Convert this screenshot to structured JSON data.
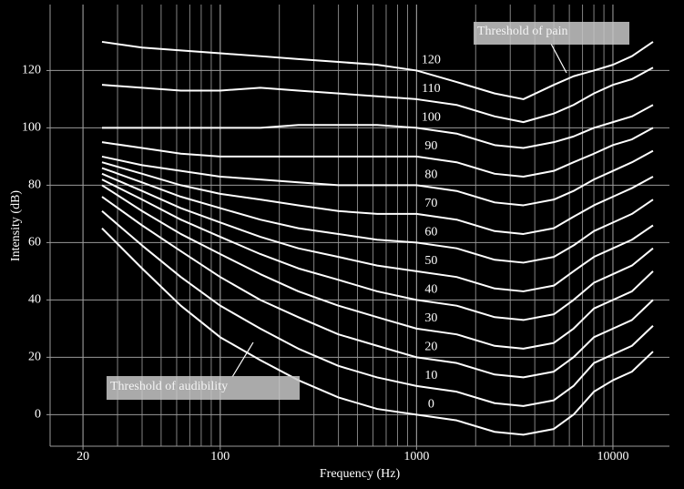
{
  "chart_data": {
    "type": "line",
    "xlabel": "Frequency (Hz)",
    "ylabel": "Intensity (dB)",
    "xscale": "log",
    "grid": true,
    "color": "#ffffff",
    "xlim": [
      13.6,
      19400
    ],
    "ylim": [
      -11,
      143
    ],
    "xticks": [
      20,
      100,
      1000,
      10000
    ],
    "yticks": [
      0,
      20,
      40,
      60,
      80,
      100,
      120
    ],
    "x": [
      25,
      40,
      63,
      100,
      160,
      250,
      400,
      630,
      1000,
      1600,
      2500,
      3500,
      5000,
      6300,
      8000,
      10000,
      12500,
      16000
    ],
    "series": [
      {
        "name": "0",
        "values": [
          65,
          51,
          38,
          27,
          19,
          12,
          6,
          2,
          0,
          -2,
          -6,
          -7,
          -5,
          0,
          8,
          12,
          15,
          22
        ]
      },
      {
        "name": "10",
        "values": [
          71,
          59,
          48,
          38,
          30,
          23,
          17,
          13,
          10,
          8,
          4,
          3,
          5,
          10,
          18,
          21,
          24,
          31
        ]
      },
      {
        "name": "20",
        "values": [
          76,
          66,
          57,
          48,
          40,
          34,
          28,
          24,
          20,
          18,
          14,
          13,
          15,
          20,
          27,
          30,
          33,
          40
        ]
      },
      {
        "name": "30",
        "values": [
          80,
          71,
          63,
          56,
          49,
          43,
          38,
          34,
          30,
          28,
          24,
          23,
          25,
          30,
          37,
          40,
          43,
          50
        ]
      },
      {
        "name": "40",
        "values": [
          82,
          75,
          68,
          62,
          56,
          51,
          47,
          43,
          40,
          38,
          34,
          33,
          35,
          40,
          46,
          49,
          52,
          58
        ]
      },
      {
        "name": "50",
        "values": [
          84,
          78,
          72,
          67,
          62,
          58,
          55,
          52,
          50,
          48,
          44,
          43,
          45,
          50,
          55,
          58,
          61,
          66
        ]
      },
      {
        "name": "60",
        "values": [
          86,
          81,
          76,
          72,
          68,
          65,
          63,
          61,
          60,
          58,
          54,
          53,
          55,
          59,
          64,
          67,
          70,
          75
        ]
      },
      {
        "name": "70",
        "values": [
          88,
          84,
          80,
          77,
          75,
          73,
          71,
          70,
          70,
          68,
          64,
          63,
          65,
          69,
          73,
          76,
          79,
          83
        ]
      },
      {
        "name": "80",
        "values": [
          90,
          87,
          85,
          83,
          82,
          81,
          80,
          80,
          80,
          78,
          74,
          73,
          75,
          78,
          82,
          85,
          88,
          92
        ]
      },
      {
        "name": "90",
        "values": [
          95,
          93,
          91,
          90,
          90,
          90,
          90,
          90,
          90,
          88,
          84,
          83,
          85,
          88,
          91,
          94,
          96,
          100
        ]
      },
      {
        "name": "100",
        "values": [
          100,
          100,
          100,
          100,
          100,
          101,
          101,
          101,
          100,
          98,
          94,
          93,
          95,
          97,
          100,
          102,
          104,
          108
        ]
      },
      {
        "name": "110",
        "values": [
          115,
          114,
          113,
          113,
          114,
          113,
          112,
          111,
          110,
          108,
          104,
          102,
          105,
          108,
          112,
          115,
          117,
          121
        ]
      },
      {
        "name": "120",
        "values": [
          130,
          128,
          127,
          126,
          125,
          124,
          123,
          122,
          120,
          116,
          112,
          110,
          115,
          118,
          120,
          122,
          125,
          130
        ]
      }
    ],
    "annotations": [
      "Threshold of pain",
      "Threshold of audibility"
    ]
  }
}
